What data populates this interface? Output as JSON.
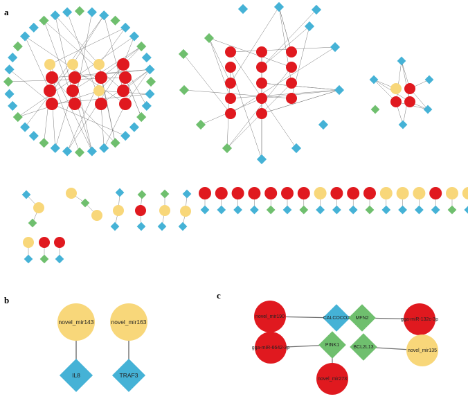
{
  "panels": {
    "a": "a",
    "b": "b",
    "c": "c"
  },
  "colors": {
    "mirna_red": "#e0191f",
    "mirna_yellow": "#f8d77a",
    "gene_blue": "#45b2d6",
    "gene_green": "#6fbf6e",
    "edge": "#6e6e6e"
  },
  "panel_b": {
    "nodes": [
      {
        "id": "novel_mir143",
        "label": "novel_mir143",
        "kind": "mirna",
        "color": "yellow"
      },
      {
        "id": "novel_mir163",
        "label": "novel_mir163",
        "kind": "mirna",
        "color": "yellow"
      },
      {
        "id": "IL8",
        "label": "IL8",
        "kind": "gene",
        "color": "blue"
      },
      {
        "id": "TRAF3",
        "label": "TRAF3",
        "kind": "gene",
        "color": "blue"
      }
    ],
    "edges": [
      [
        "novel_mir143",
        "IL8"
      ],
      [
        "novel_mir163",
        "TRAF3"
      ]
    ]
  },
  "panel_c": {
    "nodes": [
      {
        "id": "novel_mir190",
        "label": "novel_mir190",
        "kind": "mirna",
        "color": "red"
      },
      {
        "id": "CALCOCO2",
        "label": "CALCOCO2",
        "kind": "gene",
        "color": "blue"
      },
      {
        "id": "MFN2",
        "label": "MFN2",
        "kind": "gene",
        "color": "green"
      },
      {
        "id": "gga-miR-132c-3p",
        "label": "gga-miR-132c-3p",
        "kind": "mirna",
        "color": "red"
      },
      {
        "id": "gga-miR-6642-3p",
        "label": "gga-miR-6642-3p",
        "kind": "mirna",
        "color": "red"
      },
      {
        "id": "PINK1",
        "label": "PINK1",
        "kind": "gene",
        "color": "green"
      },
      {
        "id": "BCL2L13",
        "label": "BCL2L13",
        "kind": "gene",
        "color": "green"
      },
      {
        "id": "novel_mir135",
        "label": "novel_mir135",
        "kind": "mirna",
        "color": "yellow"
      },
      {
        "id": "novel_mir273",
        "label": "novel_mir273",
        "kind": "mirna",
        "color": "red"
      }
    ],
    "edges": [
      [
        "novel_mir190",
        "CALCOCO2"
      ],
      [
        "MFN2",
        "gga-miR-132c-3p"
      ],
      [
        "gga-miR-6642-3p",
        "PINK1"
      ],
      [
        "BCL2L13",
        "novel_mir135"
      ],
      [
        "PINK1",
        "novel_mir273"
      ]
    ]
  }
}
